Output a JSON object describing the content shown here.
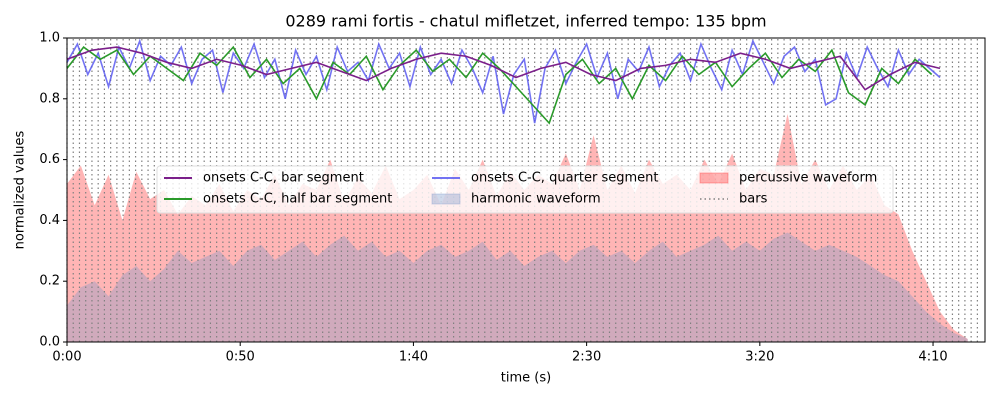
{
  "chart_data": {
    "type": "line",
    "title": "0289 rami fortis - chatul mifletzet, inferred tempo: 135 bpm",
    "xlabel": "time (s)",
    "ylabel": "normalized values",
    "xlim": [
      0,
      265
    ],
    "ylim": [
      0,
      1
    ],
    "xticks": [
      {
        "value": 0,
        "label": "0:00"
      },
      {
        "value": 50,
        "label": "0:50"
      },
      {
        "value": 100,
        "label": "1:40"
      },
      {
        "value": 150,
        "label": "2:30"
      },
      {
        "value": 200,
        "label": "3:20"
      },
      {
        "value": 250,
        "label": "4:10"
      }
    ],
    "yticks": [
      {
        "value": 0,
        "label": "0.0"
      },
      0.2,
      0.4,
      0.6,
      0.8,
      {
        "value": 1,
        "label": "1.0"
      }
    ],
    "waveforms": {
      "x": [
        0,
        4,
        8,
        12,
        16,
        20,
        24,
        28,
        32,
        36,
        40,
        44,
        48,
        52,
        56,
        60,
        64,
        68,
        72,
        76,
        80,
        84,
        88,
        92,
        96,
        100,
        104,
        108,
        112,
        116,
        120,
        124,
        128,
        132,
        136,
        140,
        144,
        148,
        152,
        156,
        160,
        164,
        168,
        172,
        176,
        180,
        184,
        188,
        192,
        196,
        200,
        204,
        208,
        212,
        216,
        220,
        224,
        228,
        232,
        236,
        240,
        244,
        248,
        252,
        256,
        260
      ],
      "series": [
        {
          "name": "percussive waveform",
          "color": "rgba(255,60,60,0.38)",
          "values": [
            0.52,
            0.58,
            0.45,
            0.55,
            0.4,
            0.56,
            0.47,
            0.5,
            0.42,
            0.48,
            0.45,
            0.52,
            0.43,
            0.5,
            0.47,
            0.55,
            0.45,
            0.52,
            0.5,
            0.6,
            0.46,
            0.54,
            0.49,
            0.58,
            0.47,
            0.5,
            0.55,
            0.45,
            0.57,
            0.5,
            0.6,
            0.48,
            0.56,
            0.5,
            0.55,
            0.52,
            0.62,
            0.5,
            0.68,
            0.5,
            0.58,
            0.49,
            0.6,
            0.52,
            0.55,
            0.5,
            0.6,
            0.52,
            0.62,
            0.5,
            0.57,
            0.55,
            0.75,
            0.52,
            0.6,
            0.5,
            0.58,
            0.5,
            0.55,
            0.45,
            0.42,
            0.3,
            0.2,
            0.1,
            0.04,
            0.01
          ]
        },
        {
          "name": "harmonic waveform",
          "color": "rgba(120,150,200,0.35)",
          "values": [
            0.12,
            0.18,
            0.2,
            0.15,
            0.22,
            0.25,
            0.2,
            0.24,
            0.3,
            0.26,
            0.28,
            0.3,
            0.25,
            0.3,
            0.32,
            0.27,
            0.3,
            0.33,
            0.28,
            0.32,
            0.35,
            0.3,
            0.33,
            0.28,
            0.3,
            0.26,
            0.3,
            0.32,
            0.28,
            0.3,
            0.33,
            0.27,
            0.3,
            0.25,
            0.28,
            0.3,
            0.26,
            0.3,
            0.32,
            0.28,
            0.3,
            0.26,
            0.3,
            0.33,
            0.28,
            0.3,
            0.32,
            0.35,
            0.3,
            0.33,
            0.3,
            0.34,
            0.36,
            0.33,
            0.3,
            0.32,
            0.3,
            0.28,
            0.25,
            0.22,
            0.2,
            0.15,
            0.1,
            0.06,
            0.03,
            0.01
          ]
        }
      ]
    },
    "bars": {
      "name": "bars",
      "color": "#808080",
      "x": [
        0,
        1.8,
        3.6,
        5.4,
        7.2,
        9,
        10.8,
        12.6,
        14.4,
        16.2,
        18,
        19.8,
        21.6,
        23.4,
        25.2,
        27,
        28.8,
        30.6,
        32.4,
        34.2,
        36,
        37.8,
        39.6,
        41.4,
        43.2,
        45,
        46.8,
        48.6,
        50.4,
        52.2,
        54,
        55.8,
        57.6,
        59.4,
        61.2,
        63,
        64.8,
        66.6,
        68.4,
        70.2,
        72,
        73.8,
        75.6,
        77.4,
        79.2,
        81,
        82.8,
        84.6,
        86.4,
        88.2,
        90,
        91.8,
        93.6,
        95.4,
        97.2,
        99,
        100.8,
        102.6,
        104.4,
        106.2,
        108,
        109.8,
        111.6,
        113.4,
        115.2,
        117,
        118.8,
        120.6,
        122.4,
        124.2,
        126,
        127.8,
        129.6,
        131.4,
        133.2,
        135,
        136.8,
        138.6,
        140.4,
        142.2,
        144,
        145.8,
        147.6,
        149.4,
        151.2,
        153,
        154.8,
        156.6,
        158.4,
        160.2,
        162,
        163.8,
        165.6,
        167.4,
        169.2,
        171,
        172.8,
        174.6,
        176.4,
        178.2,
        180,
        181.8,
        183.6,
        185.4,
        187.2,
        189,
        190.8,
        192.6,
        194.4,
        196.2,
        198,
        199.8,
        201.6,
        203.4,
        205.2,
        207,
        208.8,
        210.6,
        212.4,
        214.2,
        216,
        217.8,
        219.6,
        221.4,
        223.2,
        225,
        226.8,
        228.6,
        230.4,
        232.2,
        234,
        235.8,
        237.6,
        239.4,
        241.2,
        243,
        244.8,
        246.6,
        248.4,
        250.2,
        252,
        253.8,
        255.6,
        257.4,
        259.2,
        261,
        262.8
      ]
    },
    "series": [
      {
        "name": "onsets C-C, bar segment",
        "color": "#7b1f8a",
        "x": [
          0,
          7.2,
          14.4,
          21.6,
          28.8,
          36,
          43.2,
          50.4,
          57.6,
          64.8,
          72,
          79.2,
          86.4,
          93.6,
          100.8,
          108,
          115.2,
          122.4,
          129.6,
          136.8,
          144,
          151.2,
          158.4,
          165.6,
          172.8,
          180,
          187.2,
          194.4,
          201.6,
          208.8,
          216,
          223.2,
          230.4,
          237.6,
          244.8,
          252
        ],
        "values": [
          0.93,
          0.96,
          0.97,
          0.95,
          0.92,
          0.9,
          0.93,
          0.91,
          0.88,
          0.9,
          0.92,
          0.89,
          0.86,
          0.9,
          0.93,
          0.95,
          0.94,
          0.91,
          0.87,
          0.9,
          0.92,
          0.88,
          0.86,
          0.9,
          0.91,
          0.93,
          0.92,
          0.95,
          0.93,
          0.9,
          0.92,
          0.94,
          0.83,
          0.88,
          0.92,
          0.9
        ]
      },
      {
        "name": "onsets C-C, half bar segment",
        "color": "#2a9a2a",
        "x": [
          0,
          4.8,
          9.6,
          14.4,
          19.2,
          24,
          28.8,
          33.6,
          38.4,
          43.2,
          48,
          52.8,
          57.6,
          62.4,
          67.2,
          72,
          76.8,
          81.6,
          86.4,
          91.2,
          96,
          100.8,
          105.6,
          110.4,
          115.2,
          120,
          124.8,
          129.6,
          134.4,
          139.2,
          144,
          148.8,
          153.6,
          158.4,
          163.2,
          168,
          172.8,
          177.6,
          182.4,
          187.2,
          192,
          196.8,
          201.6,
          206.4,
          211.2,
          216,
          220.8,
          225.6,
          230.4,
          235.2,
          240,
          244.8,
          249.6
        ],
        "values": [
          0.9,
          0.97,
          0.93,
          0.96,
          0.88,
          0.94,
          0.9,
          0.86,
          0.95,
          0.91,
          0.97,
          0.87,
          0.93,
          0.85,
          0.9,
          0.8,
          0.92,
          0.88,
          0.94,
          0.83,
          0.91,
          0.96,
          0.89,
          0.93,
          0.87,
          0.95,
          0.9,
          0.84,
          0.78,
          0.72,
          0.88,
          0.93,
          0.85,
          0.9,
          0.8,
          0.91,
          0.86,
          0.94,
          0.88,
          0.92,
          0.84,
          0.9,
          0.95,
          0.87,
          0.93,
          0.89,
          0.96,
          0.82,
          0.78,
          0.9,
          0.85,
          0.93,
          0.88
        ]
      },
      {
        "name": "onsets C-C, quarter segment",
        "color": "rgba(80,80,240,0.8)",
        "x": [
          0,
          3,
          6,
          9,
          12,
          15,
          18,
          21,
          24,
          27,
          30,
          33,
          36,
          39,
          42,
          45,
          48,
          51,
          54,
          57,
          60,
          63,
          66,
          69,
          72,
          75,
          78,
          81,
          84,
          87,
          90,
          93,
          96,
          99,
          102,
          105,
          108,
          111,
          114,
          117,
          120,
          123,
          126,
          129,
          132,
          135,
          138,
          141,
          144,
          147,
          150,
          153,
          156,
          159,
          162,
          165,
          168,
          171,
          174,
          177,
          180,
          183,
          186,
          189,
          192,
          195,
          198,
          201,
          204,
          207,
          210,
          213,
          216,
          219,
          222,
          225,
          228,
          231,
          234,
          237,
          240,
          243,
          246,
          249,
          252
        ],
        "values": [
          0.92,
          0.98,
          0.88,
          0.95,
          0.84,
          0.97,
          0.9,
          0.99,
          0.86,
          0.94,
          0.91,
          0.97,
          0.85,
          0.93,
          0.96,
          0.82,
          0.95,
          0.9,
          0.98,
          0.87,
          0.93,
          0.8,
          0.96,
          0.88,
          0.94,
          0.83,
          0.97,
          0.89,
          0.92,
          0.86,
          0.98,
          0.9,
          0.95,
          0.84,
          0.97,
          0.88,
          0.93,
          0.85,
          0.96,
          0.9,
          0.82,
          0.94,
          0.75,
          0.88,
          0.93,
          0.72,
          0.9,
          0.96,
          0.85,
          0.92,
          0.98,
          0.87,
          0.95,
          0.8,
          0.93,
          0.89,
          0.97,
          0.84,
          0.91,
          0.95,
          0.86,
          0.98,
          0.9,
          0.83,
          0.96,
          0.88,
          0.99,
          0.92,
          0.85,
          0.94,
          0.97,
          0.89,
          0.93,
          0.78,
          0.8,
          0.95,
          0.87,
          0.97,
          0.9,
          0.84,
          0.96,
          0.88,
          0.93,
          0.9,
          0.87
        ]
      }
    ]
  }
}
